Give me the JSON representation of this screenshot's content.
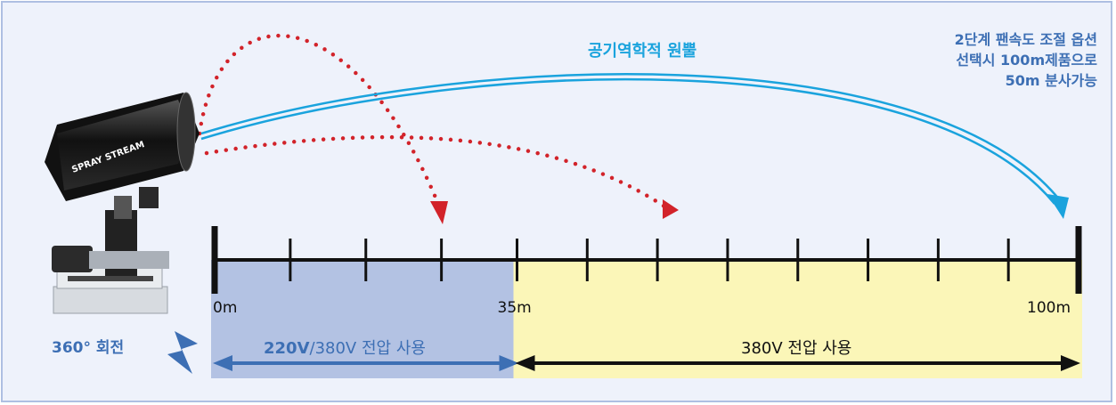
{
  "airflow_label": "공기역학적 원뿔",
  "option_note": [
    "2단계 팬속도 조절 옵션",
    "선택시 100m제품으로",
    "50m 분사가능"
  ],
  "rotation_label": "360° 회전",
  "device_brand": "SPRAY STREAM",
  "scale": {
    "max_m": 100,
    "ticks_m": [
      0,
      8.75,
      17.5,
      26.25,
      35,
      43.125,
      51.25,
      59.375,
      67.5,
      75.625,
      83.75,
      91.875,
      100
    ],
    "labels": [
      {
        "value": 0,
        "text": "0m"
      },
      {
        "value": 35,
        "text": "35m"
      },
      {
        "value": 100,
        "text": "100m"
      }
    ]
  },
  "zones": [
    {
      "from_m": 0,
      "to_m": 35,
      "label_bold": "220V",
      "label_rest": "/380V 전압 사용",
      "color": "#b3c2e3",
      "text_color": "#3d6fb4"
    },
    {
      "from_m": 35,
      "to_m": 100,
      "label_bold": "",
      "label_rest": "380V 전압 사용",
      "color": "#fbf6b8",
      "text_color": "#111111"
    }
  ],
  "colors": {
    "accent_blue": "#3d6fb4",
    "airflow": "#1aa3dd",
    "dotted_red": "#d2232a"
  }
}
